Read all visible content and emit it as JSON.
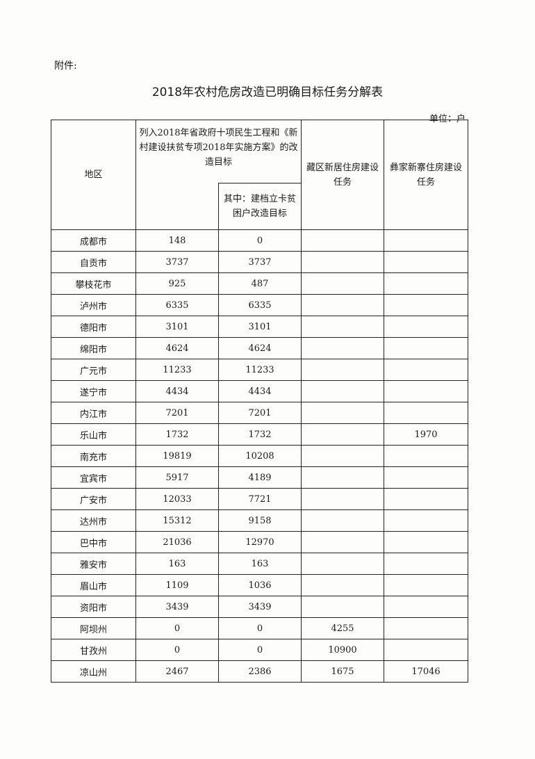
{
  "attachment_label": "附件:",
  "title": "2018年农村危房改造已明确目标任务分解表",
  "unit": "单位：户",
  "headers": {
    "region": "地区",
    "target": "列入2018年省政府十项民生工程和《新村建设扶贫专项2018年实施方案》的改造目标",
    "poor_target": "其中：建档立卡贫困户改造目标",
    "tibetan": "藏区新居住房建设任务",
    "yi": "彝家新寨住房建设任务"
  },
  "rows": [
    {
      "region": "成都市",
      "target": "148",
      "poor": "0",
      "tibetan": "",
      "yi": ""
    },
    {
      "region": "自贡市",
      "target": "3737",
      "poor": "3737",
      "tibetan": "",
      "yi": ""
    },
    {
      "region": "攀枝花市",
      "target": "925",
      "poor": "487",
      "tibetan": "",
      "yi": ""
    },
    {
      "region": "泸州市",
      "target": "6335",
      "poor": "6335",
      "tibetan": "",
      "yi": ""
    },
    {
      "region": "德阳市",
      "target": "3101",
      "poor": "3101",
      "tibetan": "",
      "yi": ""
    },
    {
      "region": "绵阳市",
      "target": "4624",
      "poor": "4624",
      "tibetan": "",
      "yi": ""
    },
    {
      "region": "广元市",
      "target": "11233",
      "poor": "11233",
      "tibetan": "",
      "yi": ""
    },
    {
      "region": "遂宁市",
      "target": "4434",
      "poor": "4434",
      "tibetan": "",
      "yi": ""
    },
    {
      "region": "内江市",
      "target": "7201",
      "poor": "7201",
      "tibetan": "",
      "yi": ""
    },
    {
      "region": "乐山市",
      "target": "1732",
      "poor": "1732",
      "tibetan": "",
      "yi": "1970"
    },
    {
      "region": "南充市",
      "target": "19819",
      "poor": "10208",
      "tibetan": "",
      "yi": ""
    },
    {
      "region": "宜宾市",
      "target": "5917",
      "poor": "4189",
      "tibetan": "",
      "yi": ""
    },
    {
      "region": "广安市",
      "target": "12033",
      "poor": "7721",
      "tibetan": "",
      "yi": ""
    },
    {
      "region": "达州市",
      "target": "15312",
      "poor": "9158",
      "tibetan": "",
      "yi": ""
    },
    {
      "region": "巴中市",
      "target": "21036",
      "poor": "12970",
      "tibetan": "",
      "yi": ""
    },
    {
      "region": "雅安市",
      "target": "163",
      "poor": "163",
      "tibetan": "",
      "yi": ""
    },
    {
      "region": "眉山市",
      "target": "1109",
      "poor": "1036",
      "tibetan": "",
      "yi": ""
    },
    {
      "region": "资阳市",
      "target": "3439",
      "poor": "3439",
      "tibetan": "",
      "yi": ""
    },
    {
      "region": "阿坝州",
      "target": "0",
      "poor": "0",
      "tibetan": "4255",
      "yi": ""
    },
    {
      "region": "甘孜州",
      "target": "0",
      "poor": "0",
      "tibetan": "10900",
      "yi": ""
    },
    {
      "region": "凉山州",
      "target": "2467",
      "poor": "2386",
      "tibetan": "1675",
      "yi": "17046"
    }
  ]
}
